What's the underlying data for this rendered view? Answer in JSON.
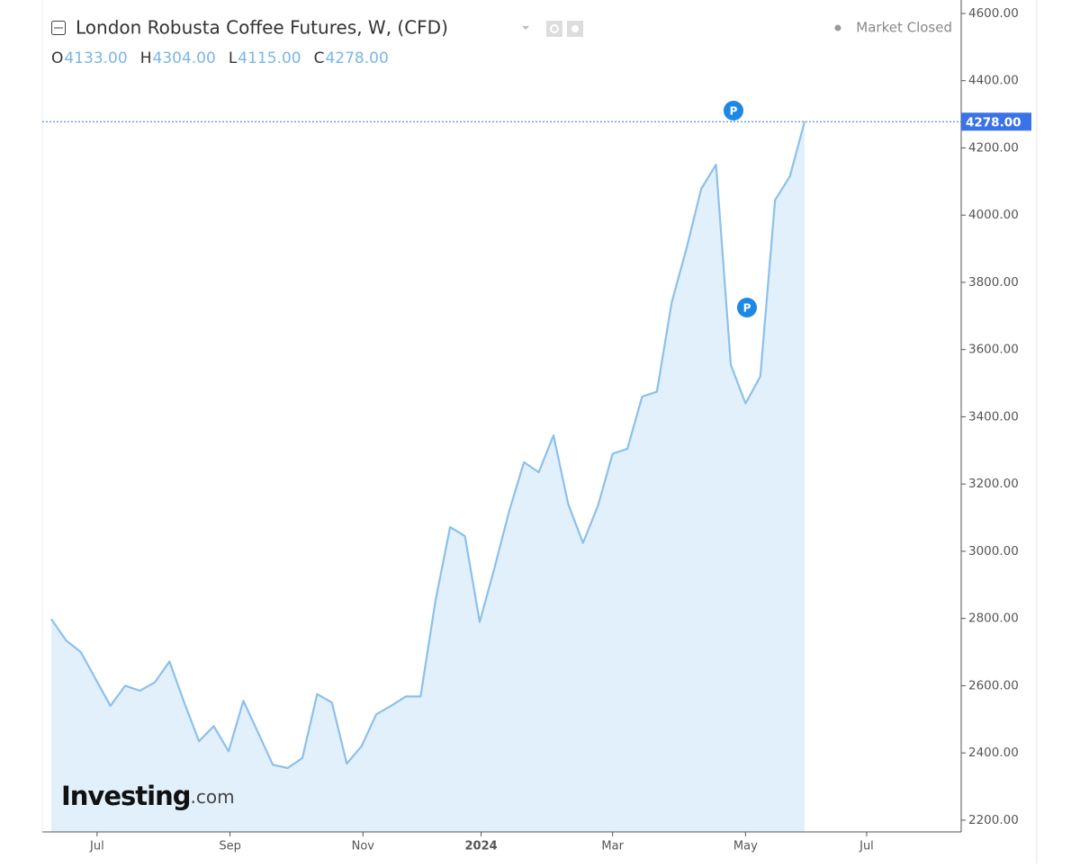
{
  "chart_data": {
    "type": "area",
    "title": "London Robusta Coffee Futures, W, (CFD)",
    "ohlc": [
      {
        "key": "O",
        "value": "4133.00"
      },
      {
        "key": "H",
        "value": "4304.00"
      },
      {
        "key": "L",
        "value": "4115.00"
      },
      {
        "key": "C",
        "value": "4278.00"
      }
    ],
    "status": "Market Closed",
    "watermark": {
      "main": "Investing",
      "suffix": ".com"
    },
    "event_markers": [
      "P",
      "P"
    ],
    "color": "#8cc0ec",
    "fill": "#e2f0fb",
    "values": [
      2798,
      2735,
      2700,
      2620,
      2540,
      2600,
      2585,
      2610,
      2672,
      2550,
      2435,
      2480,
      2405,
      2555,
      2460,
      2365,
      2355,
      2385,
      2575,
      2550,
      2368,
      2420,
      2515,
      2540,
      2568,
      2568,
      2850,
      3072,
      3045,
      2790,
      2950,
      3120,
      3265,
      3235,
      3345,
      3140,
      3025,
      3135,
      3290,
      3305,
      3460,
      3475,
      3740,
      3900,
      4078,
      4150,
      3555,
      3440,
      3520,
      4045,
      4115,
      4278
    ],
    "last_value": {
      "value": 4278,
      "label": "4278.00"
    },
    "xlim": [
      -0.61,
      61.6
    ],
    "xticks": [
      {
        "value": 3.1,
        "label": "Jul"
      },
      {
        "value": 12.1,
        "label": "Sep"
      },
      {
        "value": 21.1,
        "label": "Nov"
      },
      {
        "value": 29.1,
        "label": "2024"
      },
      {
        "value": 38.0,
        "label": "Mar"
      },
      {
        "value": 47.0,
        "label": "May"
      },
      {
        "value": 55.2,
        "label": "Jul"
      }
    ],
    "ylim": [
      2165,
      4640
    ],
    "yticks": [
      {
        "value": 2200,
        "label": "2200.00"
      },
      {
        "value": 2400,
        "label": "2400.00"
      },
      {
        "value": 2600,
        "label": "2600.00"
      },
      {
        "value": 2800,
        "label": "2800.00"
      },
      {
        "value": 3000,
        "label": "3000.00"
      },
      {
        "value": 3200,
        "label": "3200.00"
      },
      {
        "value": 3400,
        "label": "3400.00"
      },
      {
        "value": 3600,
        "label": "3600.00"
      },
      {
        "value": 3800,
        "label": "3800.00"
      },
      {
        "value": 4000,
        "label": "4000.00"
      },
      {
        "value": 4200,
        "label": "4200.00"
      },
      {
        "value": 4400,
        "label": "4400.00"
      },
      {
        "value": 4600,
        "label": "4600.00"
      }
    ],
    "grid": false
  }
}
